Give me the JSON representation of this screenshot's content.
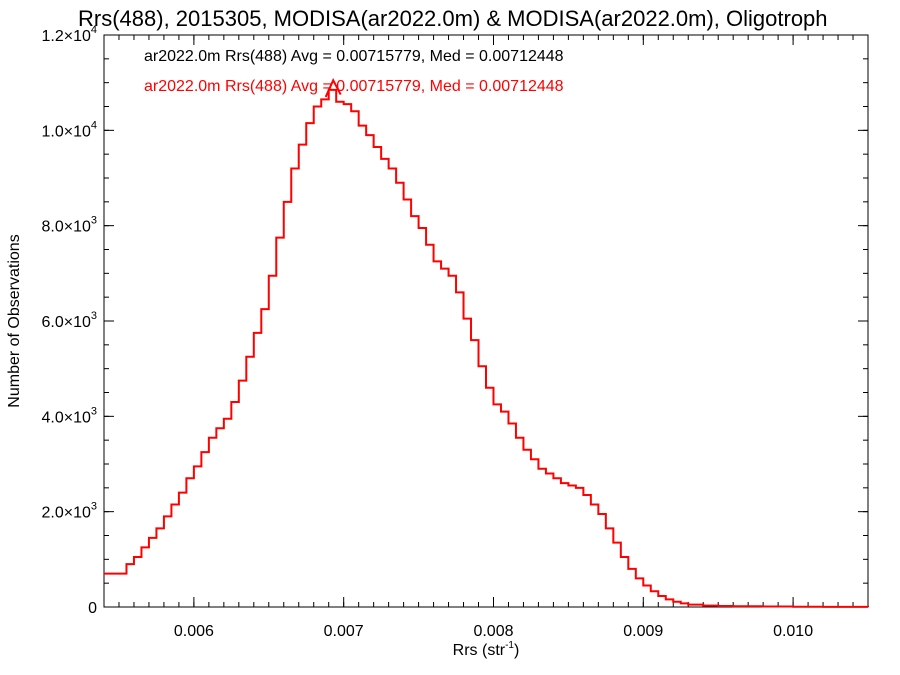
{
  "chart_data": {
    "type": "line",
    "title": "Rrs(488), 2015305, MODISA(ar2022.0m) & MODISA(ar2022.0m), Oligotroph",
    "xlabel_main": "Rrs (str",
    "xlabel_sup": "-1",
    "xlabel_close": ")",
    "ylabel": "Number of Observations",
    "xlim": [
      0.0054,
      0.0105
    ],
    "ylim": [
      0,
      12000
    ],
    "x_ticks": [
      {
        "value": 0.006,
        "label": "0.006"
      },
      {
        "value": 0.007,
        "label": "0.007"
      },
      {
        "value": 0.008,
        "label": "0.008"
      },
      {
        "value": 0.009,
        "label": "0.009"
      },
      {
        "value": 0.01,
        "label": "0.010"
      }
    ],
    "y_ticks": [
      {
        "value": 0,
        "mant": "0",
        "exp": ""
      },
      {
        "value": 2000,
        "mant": "2.0×10",
        "exp": "3"
      },
      {
        "value": 4000,
        "mant": "4.0×10",
        "exp": "3"
      },
      {
        "value": 6000,
        "mant": "6.0×10",
        "exp": "3"
      },
      {
        "value": 8000,
        "mant": "8.0×10",
        "exp": "3"
      },
      {
        "value": 10000,
        "mant": "1.0×10",
        "exp": "4"
      },
      {
        "value": 12000,
        "mant": "1.2×10",
        "exp": "4"
      }
    ],
    "legend": [
      {
        "text": "ar2022.0m Rrs(488) Avg = 0.00715779, Med = 0.00712448",
        "color": "#000000"
      },
      {
        "text": "ar2022.0m Rrs(488) Avg = 0.00715779, Med = 0.00712448",
        "color": "#ff0000"
      }
    ],
    "series": [
      {
        "color": "#ff0000",
        "step": true,
        "x": [
          0.0054,
          0.00555,
          0.0056,
          0.00565,
          0.0057,
          0.00575,
          0.0058,
          0.00585,
          0.0059,
          0.00595,
          0.006,
          0.00605,
          0.0061,
          0.00615,
          0.0062,
          0.00625,
          0.0063,
          0.00635,
          0.0064,
          0.00645,
          0.0065,
          0.00655,
          0.0066,
          0.00665,
          0.0067,
          0.00675,
          0.0068,
          0.00685,
          0.0069,
          0.00695,
          0.007,
          0.00705,
          0.0071,
          0.00715,
          0.0072,
          0.00725,
          0.0073,
          0.00735,
          0.0074,
          0.00745,
          0.0075,
          0.00755,
          0.0076,
          0.00765,
          0.0077,
          0.00775,
          0.0078,
          0.00785,
          0.0079,
          0.00795,
          0.008,
          0.00805,
          0.0081,
          0.00815,
          0.0082,
          0.00825,
          0.0083,
          0.00835,
          0.0084,
          0.00845,
          0.0085,
          0.00855,
          0.0086,
          0.00865,
          0.0087,
          0.00875,
          0.0088,
          0.00885,
          0.0089,
          0.00895,
          0.009,
          0.00905,
          0.0091,
          0.00915,
          0.0092,
          0.00925,
          0.0093,
          0.0094,
          0.0095,
          0.0096,
          0.0098,
          0.01,
          0.0102,
          0.0104,
          0.0105
        ],
        "y": [
          700,
          900,
          1050,
          1250,
          1450,
          1650,
          1900,
          2150,
          2400,
          2700,
          2950,
          3250,
          3550,
          3750,
          3950,
          4300,
          4750,
          5250,
          5750,
          6250,
          6950,
          7750,
          8500,
          9200,
          9700,
          10150,
          10500,
          10650,
          10850,
          10600,
          10550,
          10400,
          10100,
          9900,
          9650,
          9400,
          9200,
          8900,
          8550,
          8200,
          7950,
          7600,
          7250,
          7100,
          6950,
          6600,
          6050,
          5600,
          5050,
          4600,
          4250,
          4100,
          3850,
          3550,
          3300,
          3100,
          2900,
          2800,
          2700,
          2600,
          2550,
          2500,
          2350,
          2150,
          1950,
          1650,
          1350,
          1050,
          800,
          600,
          450,
          330,
          230,
          160,
          110,
          75,
          50,
          30,
          20,
          15,
          10,
          5,
          3,
          2,
          1
        ]
      },
      {
        "color": "#ff0000",
        "step": false,
        "x": [
          0.00688,
          0.00693,
          0.00698
        ],
        "y": [
          10700,
          11050,
          10750
        ]
      }
    ]
  }
}
